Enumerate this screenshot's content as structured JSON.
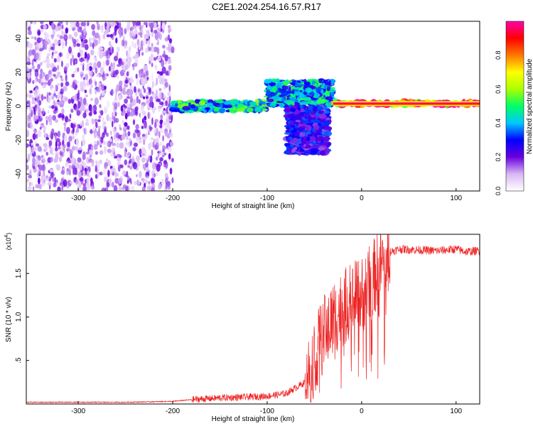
{
  "title": "C2E1.2024.254.16.57.R17",
  "chart_data": [
    {
      "type": "heatmap",
      "xlabel": "Height of straight line (km)",
      "ylabel": "Frequency (Hz)",
      "xlim": [
        -355,
        125
      ],
      "ylim": [
        -50,
        50
      ],
      "xticks": [
        -300,
        -200,
        -100,
        0,
        100
      ],
      "yticks": [
        -40,
        -20,
        0,
        20,
        40
      ],
      "colorbar": {
        "label": "Normalized spectral amplitude",
        "range": [
          0,
          1
        ],
        "ticks": [
          0.0,
          0.2,
          0.4,
          0.6,
          0.8
        ],
        "colormap": [
          "#ffffff",
          "#d9b8f5",
          "#6a00e0",
          "#0000ff",
          "#00c8ff",
          "#00ff66",
          "#aaff00",
          "#ffff00",
          "#ff7700",
          "#ff0000",
          "#ff00aa"
        ]
      },
      "regions": [
        {
          "desc": "broadband noise",
          "x": [
            -355,
            -200
          ],
          "y": [
            -50,
            50
          ],
          "amplitude": 0.15
        },
        {
          "desc": "signal band",
          "x": [
            -200,
            -100
          ],
          "y": [
            -3,
            3
          ],
          "amplitude": 0.5
        },
        {
          "desc": "split band upper",
          "x": [
            -100,
            -30
          ],
          "y": [
            0,
            15
          ],
          "amplitude": 0.45
        },
        {
          "desc": "split band lower",
          "x": [
            -80,
            -35
          ],
          "y": [
            -28,
            0
          ],
          "amplitude": 0.3
        },
        {
          "desc": "strong tone",
          "x": [
            -30,
            125
          ],
          "y": [
            0,
            3
          ],
          "amplitude": 0.95
        }
      ]
    },
    {
      "type": "line",
      "xlabel": "Height of straight line (km)",
      "ylabel": "SNR (10 * v/v)",
      "yscale_label": "(x10",
      "yscale_exp": "4",
      "xlim": [
        -355,
        125
      ],
      "ylim": [
        0,
        1.95
      ],
      "xticks": [
        -300,
        -200,
        -100,
        0,
        100
      ],
      "yticks": [
        0.5,
        1.0,
        1.5
      ],
      "color": "#ee2222",
      "series": [
        {
          "x": [
            -355,
            -250,
            -200,
            -180,
            -150,
            -120,
            -100,
            -80,
            -60,
            -50,
            -40,
            -30,
            -20,
            -10,
            0,
            10,
            20,
            30,
            40,
            60,
            80,
            100,
            110,
            125
          ],
          "y": [
            0.02,
            0.02,
            0.03,
            0.05,
            0.07,
            0.08,
            0.09,
            0.12,
            0.25,
            0.55,
            0.8,
            1.0,
            1.1,
            1.18,
            1.25,
            1.4,
            1.6,
            1.75,
            1.78,
            1.77,
            1.76,
            1.78,
            1.75,
            1.76
          ]
        }
      ]
    }
  ]
}
